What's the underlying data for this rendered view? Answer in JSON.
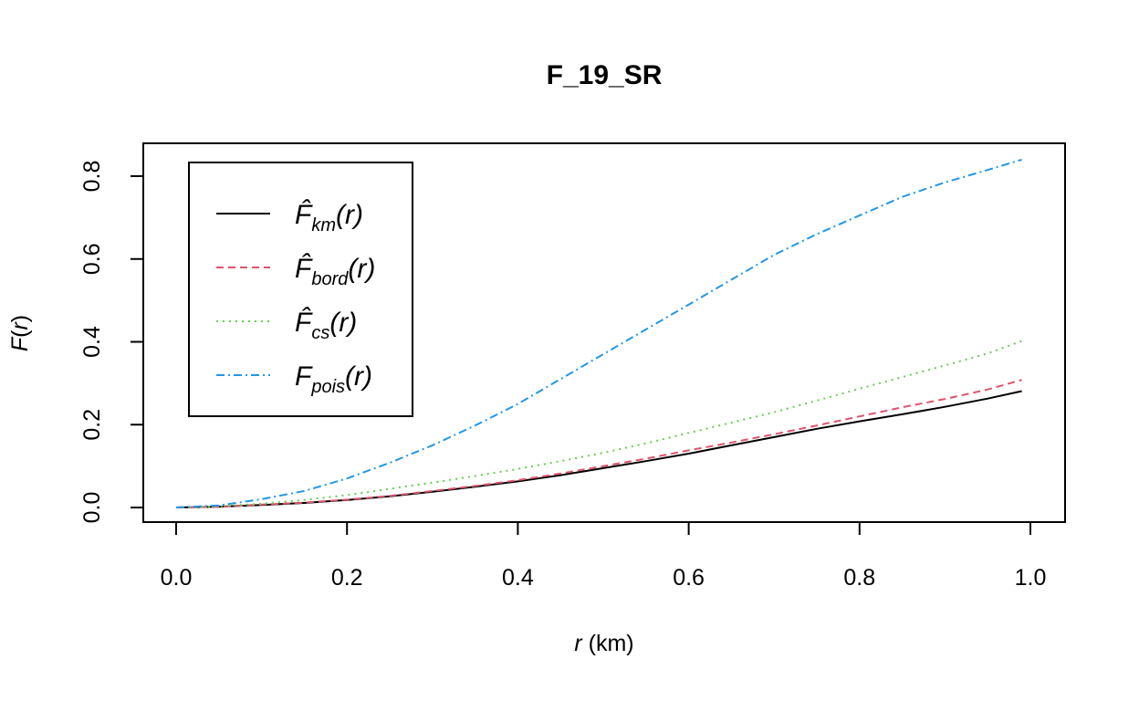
{
  "chart_data": {
    "type": "line",
    "title": "F_19_SR",
    "xlabel": {
      "var": "r",
      "unit": " (km)"
    },
    "ylabel": {
      "func": "F",
      "paren_open": "(",
      "var": "r",
      "paren_close": ")"
    },
    "xlim": [
      0,
      1
    ],
    "ylim": [
      0,
      0.8
    ],
    "xticks": [
      0.0,
      0.2,
      0.4,
      0.6,
      0.8,
      1.0
    ],
    "xtick_labels": [
      "0.0",
      "0.2",
      "0.4",
      "0.6",
      "0.8",
      "1.0"
    ],
    "yticks": [
      0.0,
      0.2,
      0.4,
      0.6,
      0.8
    ],
    "ytick_labels": [
      "0.0",
      "0.2",
      "0.4",
      "0.6",
      "0.8"
    ],
    "grid": false,
    "legend_position": "top-left",
    "series": [
      {
        "name": "F̂_km(r)",
        "label_main": "F̂",
        "label_sub": "km",
        "label_arg": "(r)",
        "color": "#000000",
        "dash": "",
        "x": [
          0,
          0.05,
          0.1,
          0.15,
          0.2,
          0.25,
          0.3,
          0.35,
          0.4,
          0.45,
          0.5,
          0.55,
          0.6,
          0.65,
          0.7,
          0.75,
          0.8,
          0.85,
          0.9,
          0.95,
          0.99
        ],
        "y": [
          0,
          0.002,
          0.006,
          0.011,
          0.018,
          0.027,
          0.038,
          0.05,
          0.063,
          0.078,
          0.095,
          0.112,
          0.13,
          0.15,
          0.17,
          0.19,
          0.208,
          0.225,
          0.243,
          0.263,
          0.281
        ]
      },
      {
        "name": "F̂_bord(r)",
        "label_main": "F̂",
        "label_sub": "bord",
        "label_arg": "(r)",
        "color": "#DF536B",
        "dash": "8,5",
        "x": [
          0,
          0.05,
          0.1,
          0.15,
          0.2,
          0.25,
          0.3,
          0.35,
          0.4,
          0.45,
          0.5,
          0.55,
          0.6,
          0.65,
          0.7,
          0.75,
          0.8,
          0.85,
          0.9,
          0.95,
          0.99
        ],
        "y": [
          0,
          0.002,
          0.007,
          0.012,
          0.019,
          0.028,
          0.04,
          0.052,
          0.066,
          0.082,
          0.1,
          0.118,
          0.138,
          0.157,
          0.177,
          0.198,
          0.22,
          0.242,
          0.262,
          0.285,
          0.308
        ]
      },
      {
        "name": "F̂_cs(r)",
        "label_main": "F̂",
        "label_sub": "cs",
        "label_arg": "(r)",
        "color": "#61D04F",
        "dash": "2,5",
        "x": [
          0,
          0.05,
          0.1,
          0.15,
          0.2,
          0.25,
          0.3,
          0.35,
          0.4,
          0.45,
          0.5,
          0.55,
          0.6,
          0.65,
          0.7,
          0.75,
          0.8,
          0.85,
          0.9,
          0.95,
          0.99
        ],
        "y": [
          0,
          0.003,
          0.009,
          0.018,
          0.03,
          0.045,
          0.06,
          0.076,
          0.093,
          0.112,
          0.132,
          0.155,
          0.18,
          0.205,
          0.23,
          0.258,
          0.287,
          0.315,
          0.343,
          0.372,
          0.402
        ]
      },
      {
        "name": "F_pois(r)",
        "label_main": "F",
        "label_sub": "pois",
        "label_arg": "(r)",
        "color": "#2297E6",
        "dash": "9,4,2,4",
        "x": [
          0,
          0.05,
          0.1,
          0.15,
          0.2,
          0.25,
          0.3,
          0.35,
          0.4,
          0.45,
          0.5,
          0.55,
          0.6,
          0.65,
          0.7,
          0.75,
          0.8,
          0.85,
          0.9,
          0.95,
          0.99
        ],
        "y": [
          0,
          0.005,
          0.02,
          0.04,
          0.07,
          0.108,
          0.15,
          0.198,
          0.25,
          0.31,
          0.37,
          0.43,
          0.49,
          0.55,
          0.61,
          0.66,
          0.705,
          0.75,
          0.785,
          0.815,
          0.84
        ]
      }
    ]
  }
}
